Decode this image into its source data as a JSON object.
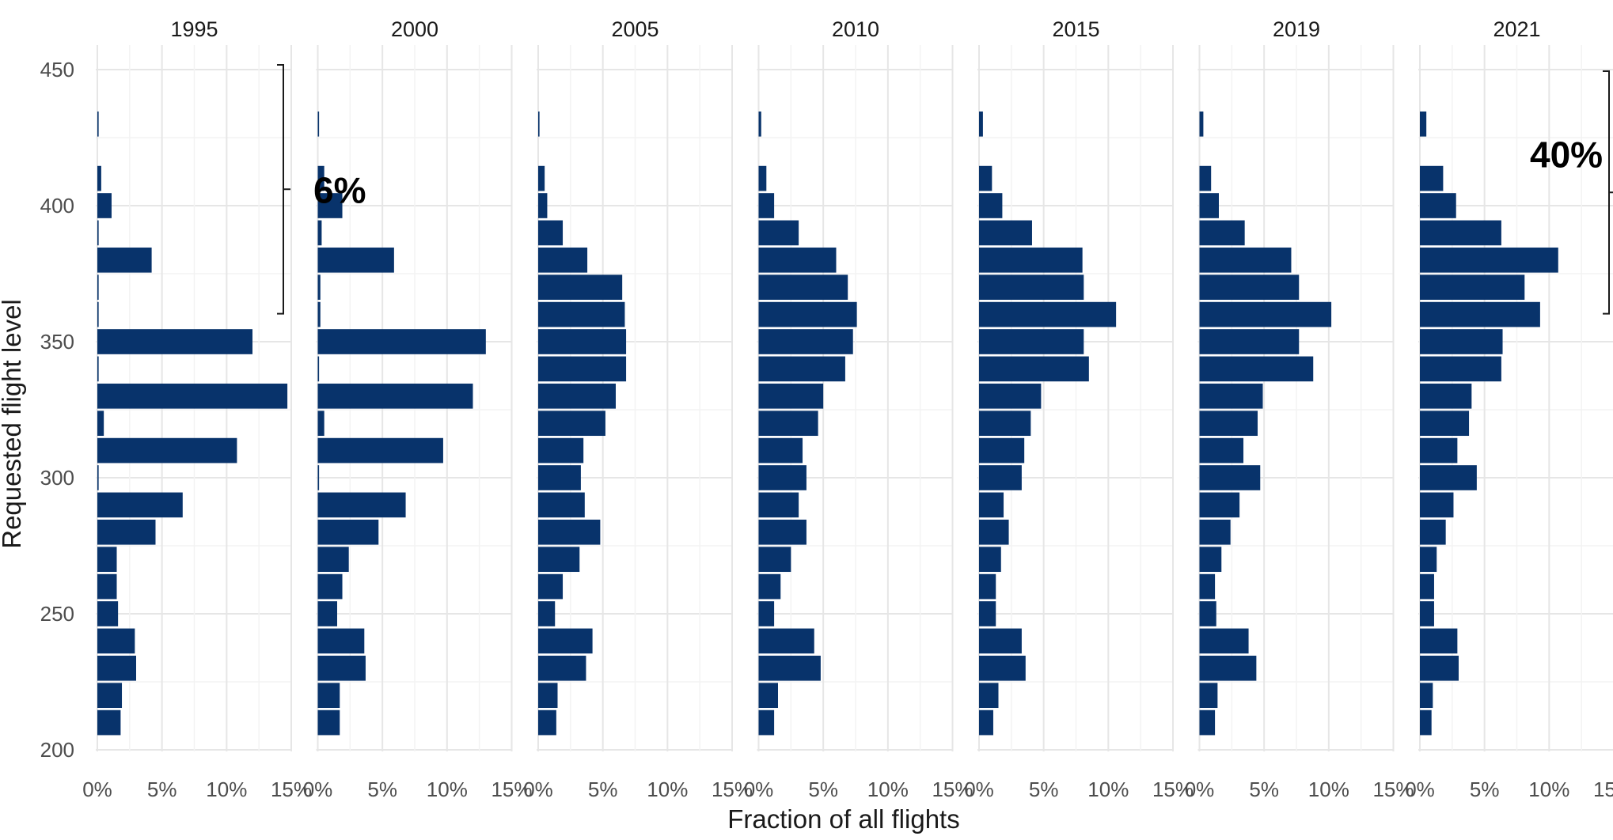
{
  "chart_data": {
    "type": "bar",
    "orientation": "horizontal",
    "facet_by": "year",
    "xlabel": "Fraction of all flights",
    "ylabel": "Requested flight level",
    "xlim": [
      0,
      15
    ],
    "ylim": [
      200,
      450
    ],
    "x_ticks": [
      "0%",
      "5%",
      "10%",
      "15%"
    ],
    "y_ticks": [
      200,
      250,
      300,
      350,
      400,
      450
    ],
    "grid": true,
    "bar_color": "#08336b",
    "flight_levels": [
      430,
      410,
      400,
      390,
      380,
      370,
      360,
      350,
      340,
      330,
      320,
      310,
      300,
      290,
      280,
      270,
      260,
      250,
      240,
      230,
      220,
      210
    ],
    "panels": [
      {
        "year": "1995",
        "values": [
          0.1,
          0.3,
          1.1,
          0.1,
          4.2,
          0.1,
          0.1,
          12.0,
          0.1,
          14.7,
          0.5,
          10.8,
          0.1,
          6.6,
          4.5,
          1.5,
          1.5,
          1.6,
          2.9,
          3.0,
          1.9,
          1.8
        ],
        "annotation": {
          "label": "6%",
          "range": [
            360,
            450
          ]
        }
      },
      {
        "year": "2000",
        "values": [
          0.1,
          0.5,
          1.9,
          0.3,
          5.9,
          0.2,
          0.2,
          13.0,
          0.1,
          12.0,
          0.5,
          9.7,
          0.1,
          6.8,
          4.7,
          2.4,
          1.9,
          1.5,
          3.6,
          3.7,
          1.7,
          1.7
        ]
      },
      {
        "year": "2005",
        "values": [
          0.1,
          0.5,
          0.7,
          1.9,
          3.8,
          6.5,
          6.7,
          6.8,
          6.8,
          6.0,
          5.2,
          3.5,
          3.3,
          3.6,
          4.8,
          3.2,
          1.9,
          1.3,
          4.2,
          3.7,
          1.5,
          1.4
        ]
      },
      {
        "year": "2010",
        "values": [
          0.2,
          0.6,
          1.2,
          3.1,
          6.0,
          6.9,
          7.6,
          7.3,
          6.7,
          5.0,
          4.6,
          3.4,
          3.7,
          3.1,
          3.7,
          2.5,
          1.7,
          1.2,
          4.3,
          4.8,
          1.5,
          1.2
        ]
      },
      {
        "year": "2015",
        "values": [
          0.3,
          1.0,
          1.8,
          4.1,
          8.0,
          8.1,
          10.6,
          8.1,
          8.5,
          4.8,
          4.0,
          3.5,
          3.3,
          1.9,
          2.3,
          1.7,
          1.3,
          1.3,
          3.3,
          3.6,
          1.5,
          1.1
        ]
      },
      {
        "year": "2019",
        "values": [
          0.3,
          0.9,
          1.5,
          3.5,
          7.1,
          7.7,
          10.2,
          7.7,
          8.8,
          4.9,
          4.5,
          3.4,
          4.7,
          3.1,
          2.4,
          1.7,
          1.2,
          1.3,
          3.8,
          4.4,
          1.4,
          1.2
        ]
      },
      {
        "year": "2021",
        "values": [
          0.5,
          1.8,
          2.8,
          6.3,
          10.7,
          8.1,
          9.3,
          6.4,
          6.3,
          4.0,
          3.8,
          2.9,
          4.4,
          2.6,
          2.0,
          1.3,
          1.1,
          1.1,
          2.9,
          3.0,
          1.0,
          0.9
        ],
        "annotation": {
          "label": "40%",
          "range": [
            360,
            450
          ]
        }
      }
    ]
  }
}
